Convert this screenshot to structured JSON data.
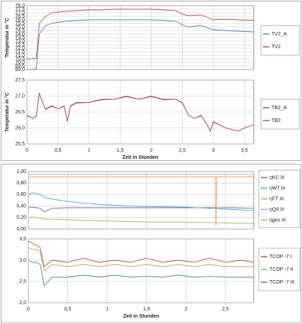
{
  "chart_data": [
    {
      "type": "line",
      "ylabel": "Temperatur in °C",
      "x": [
        0,
        0.1,
        0.15,
        0.2,
        0.3,
        0.4,
        0.6,
        0.8,
        1.0,
        1.2,
        1.4,
        1.6,
        1.8,
        2.0,
        2.2,
        2.4,
        2.5,
        2.6,
        2.8,
        3.0,
        3.2,
        3.4,
        3.65
      ],
      "xlim": [
        0,
        3.65
      ],
      "ylim": [
        69,
        78
      ],
      "yticks": [
        {
          "value": 69,
          "label": "69,0"
        },
        {
          "value": 69.5,
          "label": "69,5"
        },
        {
          "value": 70,
          "label": "70,0"
        },
        {
          "value": 70.5,
          "label": "70,5"
        },
        {
          "value": 71,
          "label": "71,0"
        },
        {
          "value": 71.5,
          "label": "71,5"
        },
        {
          "value": 72,
          "label": "72,0"
        },
        {
          "value": 72.5,
          "label": "72,5"
        },
        {
          "value": 73,
          "label": "73,0"
        },
        {
          "value": 73.5,
          "label": "73,5"
        },
        {
          "value": 74,
          "label": "74,0"
        },
        {
          "value": 74.5,
          "label": "74,5"
        },
        {
          "value": 75,
          "label": "75,0"
        },
        {
          "value": 75.5,
          "label": "75,5"
        },
        {
          "value": 76,
          "label": "76,0"
        },
        {
          "value": 76.5,
          "label": "76,5"
        },
        {
          "value": 77,
          "label": "77,0"
        },
        {
          "value": 77.5,
          "label": "77,5"
        },
        {
          "value": 78,
          "label": "78,0"
        }
      ],
      "grid": true,
      "series": [
        {
          "name": "TV2_A",
          "color": "#4f81bd",
          "values": [
            69.0,
            69.0,
            69.1,
            74.0,
            75.2,
            75.5,
            75.8,
            75.9,
            76.0,
            76.0,
            76.0,
            76.0,
            76.0,
            76.0,
            75.9,
            75.8,
            75.3,
            75.0,
            75.2,
            74.6,
            74.5,
            74.4,
            74.3
          ]
        },
        {
          "name": "TV2",
          "color": "#c0504d",
          "values": [
            70.5,
            70.5,
            70.6,
            75.5,
            76.5,
            77.0,
            77.2,
            77.3,
            77.4,
            77.4,
            77.5,
            77.5,
            77.5,
            77.5,
            77.4,
            77.3,
            76.8,
            76.6,
            76.7,
            76.0,
            76.1,
            76.0,
            75.9
          ]
        }
      ]
    },
    {
      "type": "line",
      "ylabel": "Temperatur in °C",
      "xlabel": "Zeit in Stunden",
      "x": [
        0,
        0.1,
        0.15,
        0.2,
        0.25,
        0.3,
        0.4,
        0.5,
        0.6,
        0.65,
        0.7,
        0.8,
        1.0,
        1.2,
        1.4,
        1.6,
        1.8,
        2.0,
        2.2,
        2.4,
        2.5,
        2.6,
        2.7,
        2.8,
        2.9,
        2.95,
        3.0,
        3.2,
        3.4,
        3.5,
        3.65
      ],
      "xlim": [
        0,
        3.65
      ],
      "xticks": [
        0,
        {
          "value": 0.5,
          "label": "0,5"
        },
        1,
        {
          "value": 1.5,
          "label": "1,5"
        },
        2,
        {
          "value": 2.5,
          "label": "2,5"
        },
        3,
        {
          "value": 3.5,
          "label": "3,5"
        }
      ],
      "ylim": [
        25.5,
        27.5
      ],
      "yticks": [
        {
          "value": 25.5,
          "label": "25,5"
        },
        {
          "value": 26,
          "label": "26,0"
        },
        {
          "value": 26.5,
          "label": "26,5"
        },
        {
          "value": 27,
          "label": "27,0"
        },
        {
          "value": 27.5,
          "label": "27,5"
        }
      ],
      "grid": true,
      "series": [
        {
          "name": "TB2_A",
          "color": "#8064a2",
          "values": [
            26.38,
            26.3,
            26.38,
            27.08,
            26.8,
            26.58,
            26.68,
            26.6,
            26.68,
            26.2,
            26.68,
            26.78,
            26.8,
            26.88,
            26.9,
            26.98,
            26.9,
            26.98,
            26.88,
            26.9,
            26.78,
            26.4,
            26.3,
            26.38,
            26.1,
            25.9,
            26.18,
            26.0,
            25.9,
            26.0,
            26.1
          ]
        },
        {
          "name": "TB2",
          "color": "#c0504d",
          "values": [
            26.4,
            26.3,
            26.4,
            27.1,
            26.8,
            26.6,
            26.7,
            26.6,
            26.7,
            26.2,
            26.7,
            26.8,
            26.8,
            26.9,
            26.9,
            27.0,
            26.9,
            27.0,
            26.9,
            26.9,
            26.8,
            26.4,
            26.3,
            26.4,
            26.1,
            25.9,
            26.2,
            26.0,
            25.9,
            26.0,
            26.1
          ]
        }
      ]
    },
    {
      "type": "line",
      "x": [
        0,
        0.05,
        0.1,
        0.15,
        0.2,
        0.3,
        0.5,
        0.7,
        1.0,
        1.3,
        1.6,
        2.0,
        2.3,
        2.36,
        2.37,
        2.38,
        2.39,
        2.4,
        2.6,
        2.86
      ],
      "xlim": [
        0,
        2.86
      ],
      "ylim": [
        0,
        1
      ],
      "yticks": [
        {
          "value": 0,
          "label": "0,00"
        },
        {
          "value": 0.2,
          "label": "0,20"
        },
        {
          "value": 0.4,
          "label": "0,40"
        },
        {
          "value": 0.6,
          "label": "0,60"
        },
        {
          "value": 0.8,
          "label": "0,80"
        },
        {
          "value": 1,
          "label": "1,00"
        }
      ],
      "grid": true,
      "series": [
        {
          "name": "ηKC III",
          "color": "#7f5fa0",
          "values": [
            0.37,
            0.38,
            0.37,
            0.36,
            0.3,
            0.36,
            0.37,
            0.37,
            0.37,
            0.37,
            0.37,
            0.37,
            0.37,
            0.37,
            0.37,
            0.37,
            0.37,
            0.37,
            0.37,
            0.36
          ]
        },
        {
          "name": "ηWT III",
          "color": "#4aa8c4",
          "values": [
            0.6,
            0.63,
            0.62,
            0.6,
            0.55,
            0.52,
            0.48,
            0.45,
            0.42,
            0.4,
            0.39,
            0.38,
            0.36,
            0.36,
            0.36,
            0.36,
            0.35,
            0.35,
            0.34,
            0.32
          ]
        },
        {
          "name": "ηFT III",
          "color": "#f79646",
          "values": [
            0.91,
            0.91,
            0.91,
            0.91,
            0.91,
            0.91,
            0.91,
            0.91,
            0.91,
            0.91,
            0.91,
            0.91,
            0.91,
            0.91,
            0.91,
            0.05,
            0.91,
            0.91,
            0.91,
            0.91
          ]
        },
        {
          "name": "ηQ0 III",
          "color": "#b3a2c7",
          "values": [
            0.95,
            0.95,
            0.95,
            0.95,
            0.95,
            0.95,
            0.95,
            0.95,
            0.95,
            0.95,
            0.95,
            0.95,
            0.95,
            0.95,
            0.95,
            0.95,
            0.95,
            0.95,
            0.95,
            0.95
          ]
        },
        {
          "name": "ηges III",
          "color": "#9bbb59",
          "values": [
            0.2,
            0.21,
            0.2,
            0.19,
            0.17,
            0.17,
            0.16,
            0.15,
            0.14,
            0.13,
            0.12,
            0.12,
            0.11,
            0.11,
            0.11,
            0.11,
            0.11,
            0.11,
            0.1,
            0.1
          ]
        }
      ]
    },
    {
      "type": "line",
      "xlabel": "Zeit in  Stunden",
      "x": [
        0,
        0.05,
        0.1,
        0.15,
        0.2,
        0.3,
        0.5,
        0.7,
        0.9,
        1.1,
        1.3,
        1.5,
        1.7,
        1.9,
        2.1,
        2.3,
        2.5,
        2.7,
        2.86
      ],
      "xlim": [
        0,
        2.86
      ],
      "xticks": [
        0,
        {
          "value": 0.5,
          "label": "0,5"
        },
        1,
        {
          "value": 1.5,
          "label": "1,5"
        },
        2,
        {
          "value": 2.5,
          "label": "2,5"
        }
      ],
      "ylim": [
        2,
        3.5
      ],
      "yticks": [
        {
          "value": 2,
          "label": "2,0"
        },
        {
          "value": 2.5,
          "label": "2,5"
        },
        {
          "value": 3,
          "label": "3,0"
        },
        {
          "value": 3.5,
          "label": "3,5"
        }
      ],
      "grid": true,
      "series": [
        {
          "name": "TCOP -7 I",
          "color": "#c0504d",
          "values": [
            3.45,
            3.4,
            3.35,
            3.3,
            2.85,
            3.0,
            2.95,
            3.05,
            2.95,
            3.0,
            2.95,
            3.05,
            2.95,
            3.0,
            2.95,
            3.05,
            2.95,
            3.0,
            2.95
          ]
        },
        {
          "name": "TCOP -7 II",
          "color": "#9bbb59",
          "values": [
            3.3,
            3.25,
            3.25,
            3.2,
            2.75,
            2.9,
            2.85,
            2.9,
            2.85,
            2.9,
            2.85,
            2.9,
            2.85,
            2.9,
            2.85,
            2.9,
            2.85,
            2.85,
            2.85
          ]
        },
        {
          "name": "TCOP -7 III",
          "color": "#4f81bd",
          "values": [
            3.0,
            2.95,
            2.95,
            2.9,
            2.4,
            2.6,
            2.6,
            2.65,
            2.6,
            2.65,
            2.6,
            2.62,
            2.6,
            2.65,
            2.6,
            2.62,
            2.6,
            2.6,
            2.6
          ]
        }
      ]
    }
  ]
}
